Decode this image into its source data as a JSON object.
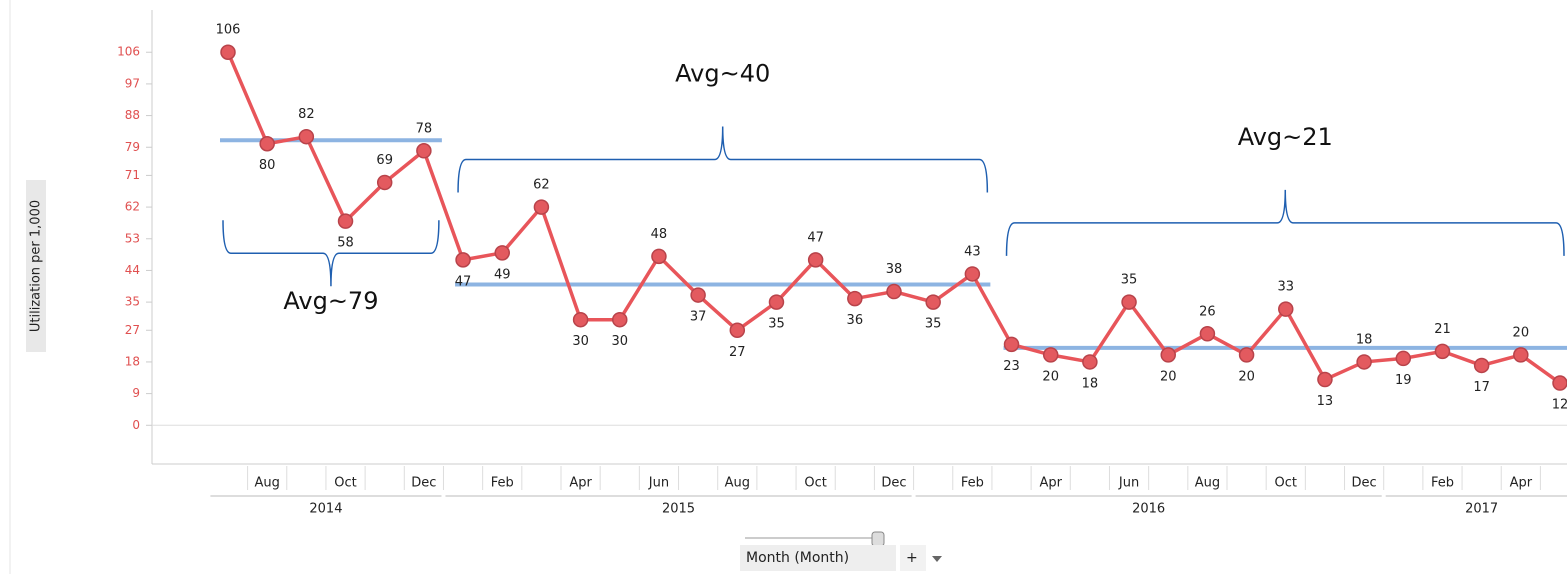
{
  "chart_data": {
    "type": "line",
    "y_label": "Utilization per 1,000",
    "categories": [
      null,
      "Aug",
      null,
      "Oct",
      null,
      "Dec",
      null,
      "Feb",
      null,
      "Apr",
      null,
      "Jun",
      null,
      "Aug",
      null,
      "Oct",
      null,
      "Dec",
      null,
      "Feb",
      null,
      "Apr",
      null,
      "Jun",
      null,
      "Aug",
      null,
      "Oct",
      null,
      "Dec",
      null,
      "Feb",
      null,
      "Apr",
      null
    ],
    "year_groups": [
      {
        "label": "2014",
        "from": 0,
        "to": 5
      },
      {
        "label": "2015",
        "from": 6,
        "to": 17
      },
      {
        "label": "2016",
        "from": 18,
        "to": 29
      },
      {
        "label": "2017",
        "from": 30,
        "to": 34
      }
    ],
    "series": [
      {
        "name": "Utilization",
        "color": "#e8555a",
        "values": [
          106,
          80,
          82,
          58,
          69,
          78,
          47,
          49,
          62,
          30,
          30,
          48,
          37,
          27,
          35,
          47,
          36,
          38,
          35,
          43,
          23,
          20,
          18,
          35,
          20,
          26,
          20,
          33,
          13,
          18,
          19,
          21,
          17,
          20,
          12
        ]
      }
    ],
    "ylim": [
      -11,
      118
    ],
    "yticks": [
      0,
      9,
      18,
      27,
      35,
      44,
      53,
      62,
      71,
      79,
      88,
      97,
      106
    ],
    "reference_lines": [
      {
        "text": "Avg~79",
        "value": 81,
        "from": 0,
        "to": 5,
        "brace": "below"
      },
      {
        "text": "Avg~40",
        "value": 40,
        "from": 6,
        "to": 19,
        "brace": "above"
      },
      {
        "text": "Avg~21",
        "value": 22,
        "from": 20,
        "to": 34,
        "brace": "above"
      }
    ],
    "reference_color": "#8db4e2",
    "controls": {
      "axis_selector": "Month (Month)",
      "add": "+"
    }
  }
}
